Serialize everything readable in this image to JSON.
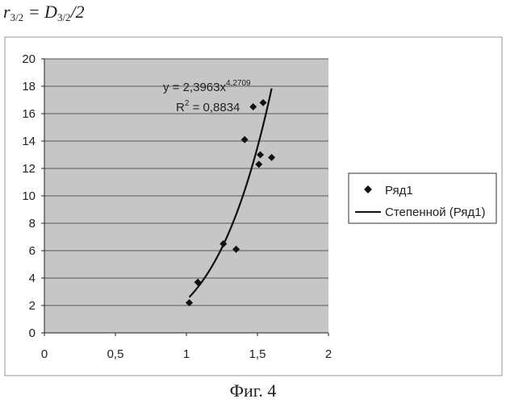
{
  "formula": {
    "lhs_var": "r",
    "lhs_sub": "3/2",
    "rhs_var": "D",
    "rhs_sub": "3/2",
    "rhs_tail": "/2"
  },
  "caption": "Фиг. 4",
  "colors": {
    "plot_bg": "#c6c6c6",
    "grid": "#555555",
    "series": "#111111",
    "frame": "#999999"
  },
  "chart_data": {
    "type": "scatter",
    "xlim": [
      0,
      2
    ],
    "ylim": [
      0,
      20
    ],
    "x_ticks": [
      0,
      0.5,
      1,
      1.5,
      2
    ],
    "x_tick_labels": [
      "0",
      "0,5",
      "1",
      "1,5",
      "2"
    ],
    "y_ticks": [
      0,
      2,
      4,
      6,
      8,
      10,
      12,
      14,
      16,
      18,
      20
    ],
    "y_tick_labels": [
      "0",
      "2",
      "4",
      "6",
      "8",
      "10",
      "12",
      "14",
      "16",
      "18",
      "20"
    ],
    "grid": "horizontal",
    "legend_position": "right",
    "series": [
      {
        "name": "Ряд1",
        "marker": "diamond",
        "x": [
          1.02,
          1.08,
          1.26,
          1.35,
          1.41,
          1.47,
          1.51,
          1.52,
          1.54,
          1.6
        ],
        "y": [
          2.2,
          3.7,
          6.5,
          6.1,
          14.1,
          16.5,
          12.3,
          13.0,
          16.8,
          12.8
        ]
      }
    ],
    "trendline": {
      "name": "Степенной (Ряд1)",
      "type": "power",
      "a": 2.3963,
      "b": 4.2709,
      "x_range": [
        1.02,
        1.6
      ],
      "equation_prefix": "y = 2,3963x",
      "equation_exp": "4,2709",
      "r2_prefix": "R",
      "r2_exp": "2",
      "r2_suffix": " = 0,8834"
    }
  }
}
